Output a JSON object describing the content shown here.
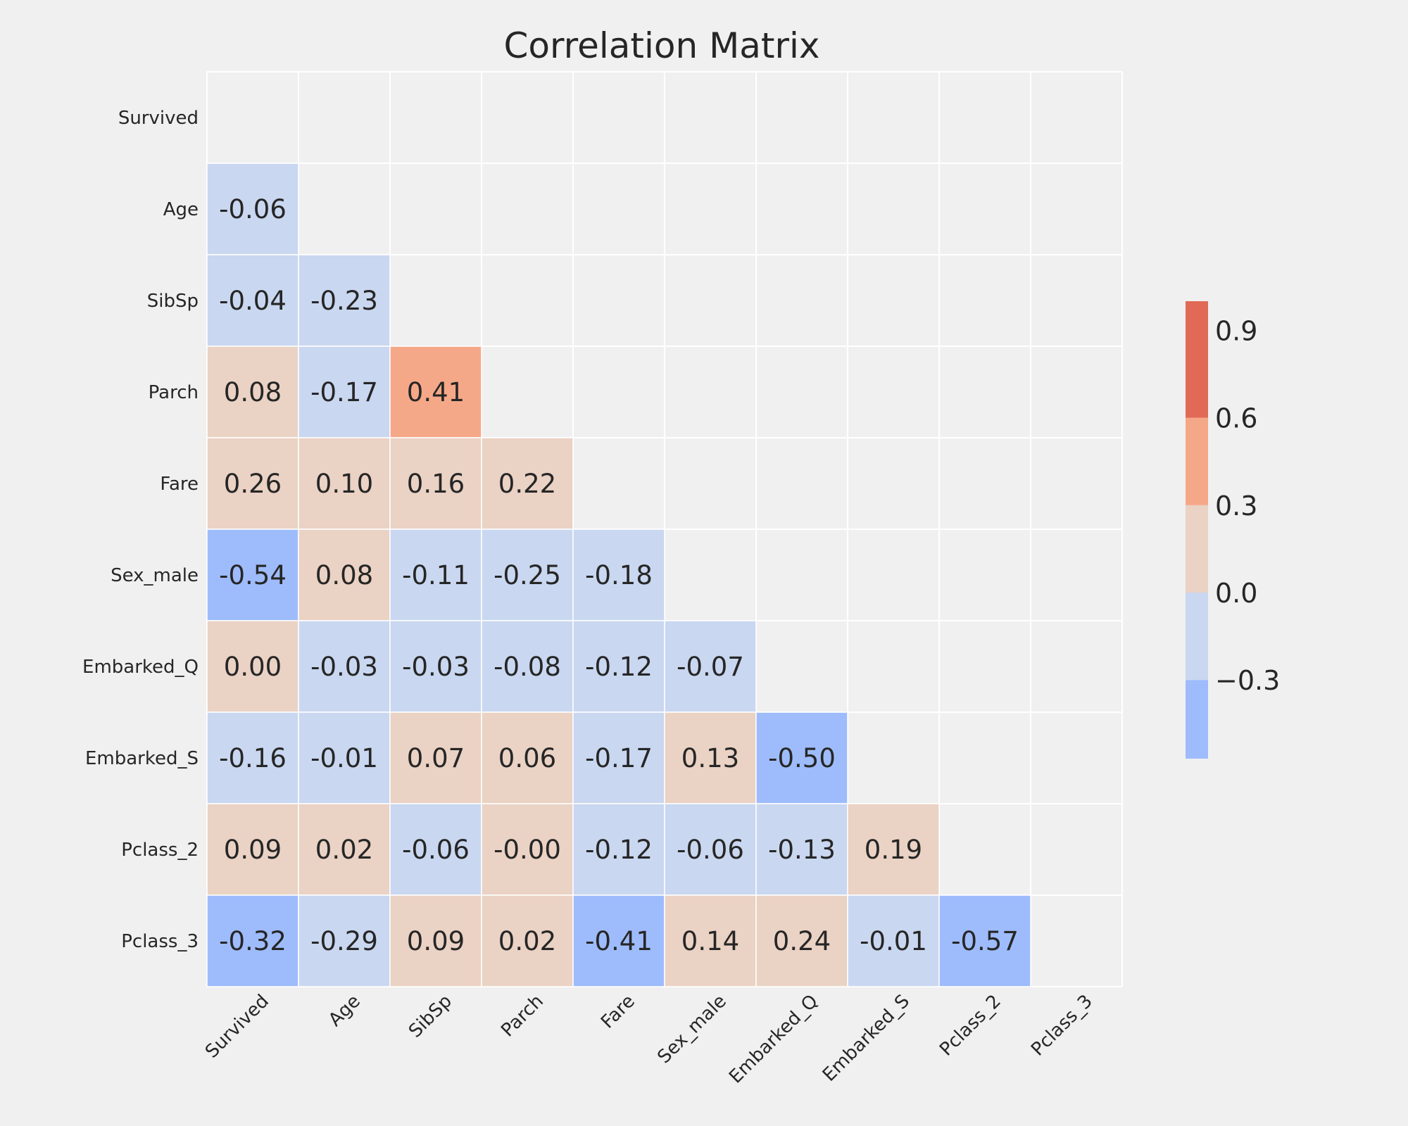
{
  "chart_data": {
    "type": "heatmap",
    "title": "Correlation Matrix",
    "row_labels": [
      "Survived",
      "Age",
      "SibSp",
      "Parch",
      "Fare",
      "Sex_male",
      "Embarked_Q",
      "Embarked_S",
      "Pclass_2",
      "Pclass_3"
    ],
    "col_labels": [
      "Survived",
      "Age",
      "SibSp",
      "Parch",
      "Fare",
      "Sex_male",
      "Embarked_Q",
      "Embarked_S",
      "Pclass_2",
      "Pclass_3"
    ],
    "mask": "upper-triangle-and-diagonal",
    "values": [
      [],
      [
        "-0.06"
      ],
      [
        "-0.04",
        "-0.23"
      ],
      [
        "0.08",
        "-0.17",
        "0.41"
      ],
      [
        "0.26",
        "0.10",
        "0.16",
        "0.22"
      ],
      [
        "-0.54",
        "0.08",
        "-0.11",
        "-0.25",
        "-0.18"
      ],
      [
        "0.00",
        "-0.03",
        "-0.03",
        "-0.08",
        "-0.12",
        "-0.07"
      ],
      [
        "-0.16",
        "-0.01",
        "0.07",
        "0.06",
        "-0.17",
        "0.13",
        "-0.50"
      ],
      [
        "0.09",
        "0.02",
        "-0.06",
        "-0.00",
        "-0.12",
        "-0.06",
        "-0.13",
        "0.19"
      ],
      [
        "-0.32",
        "-0.29",
        "0.09",
        "0.02",
        "-0.41",
        "0.14",
        "0.24",
        "-0.01",
        "-0.57"
      ]
    ],
    "colorbar": {
      "ticks": [
        "0.9",
        "0.6",
        "0.3",
        "0.0",
        "−0.3"
      ],
      "tick_values": [
        0.9,
        0.6,
        0.3,
        0.0,
        -0.3
      ],
      "range": [
        -0.57,
        1.0
      ],
      "bins": [
        {
          "from": -0.57,
          "to": -0.3,
          "color": "#9ebcfc"
        },
        {
          "from": -0.3,
          "to": 0.0,
          "color": "#c9d7f0"
        },
        {
          "from": 0.0,
          "to": 0.3,
          "color": "#ead2c4"
        },
        {
          "from": 0.3,
          "to": 0.6,
          "color": "#f5a888"
        },
        {
          "from": 0.6,
          "to": 1.0,
          "color": "#e06a55"
        }
      ]
    },
    "grid": true,
    "colors": {
      "background": "#f0f0f0",
      "gridline": "#ffffff",
      "text": "#262626"
    }
  }
}
